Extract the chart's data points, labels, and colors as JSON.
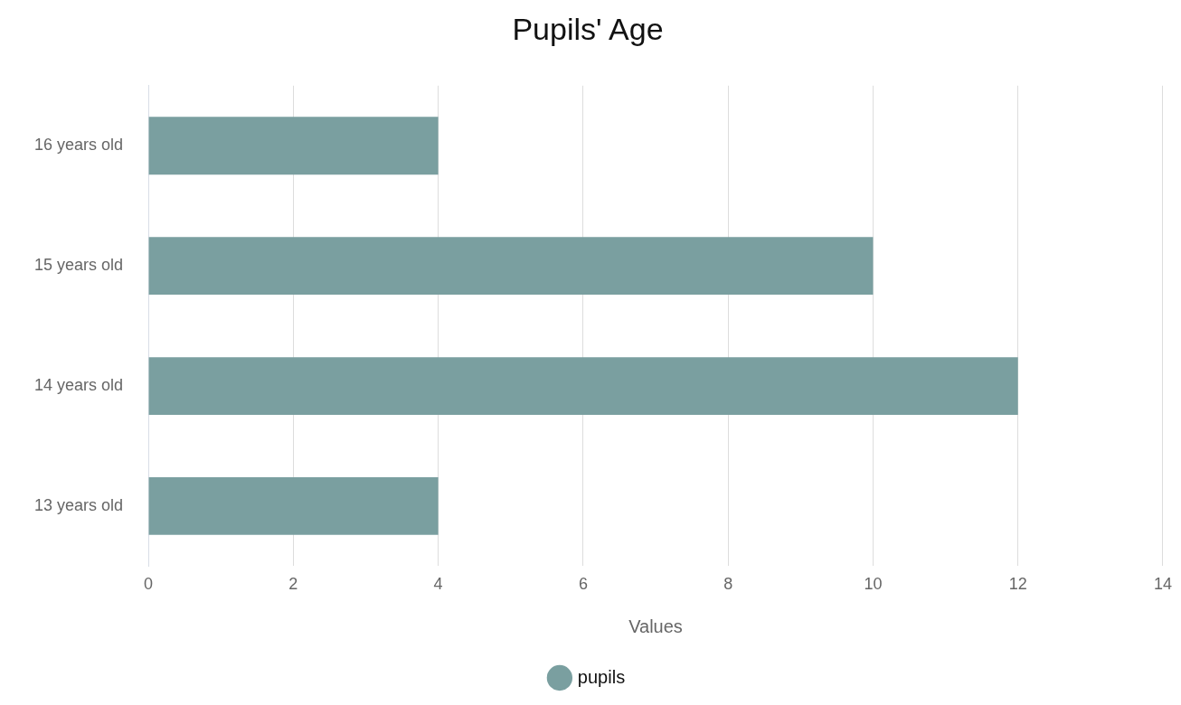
{
  "chart_data": {
    "type": "bar",
    "orientation": "horizontal",
    "title": "Pupils' Age",
    "xlabel": "Values",
    "categories": [
      "16 years old",
      "15 years old",
      "14 years old",
      "13 years old"
    ],
    "series": [
      {
        "name": "pupils",
        "color": "#7a9fa0",
        "values": [
          4,
          10,
          12,
          4
        ]
      }
    ],
    "xlim": [
      0,
      14
    ],
    "xticks": [
      0,
      2,
      4,
      6,
      8,
      10,
      12,
      14
    ],
    "grid": "x",
    "legend": "bottom"
  }
}
